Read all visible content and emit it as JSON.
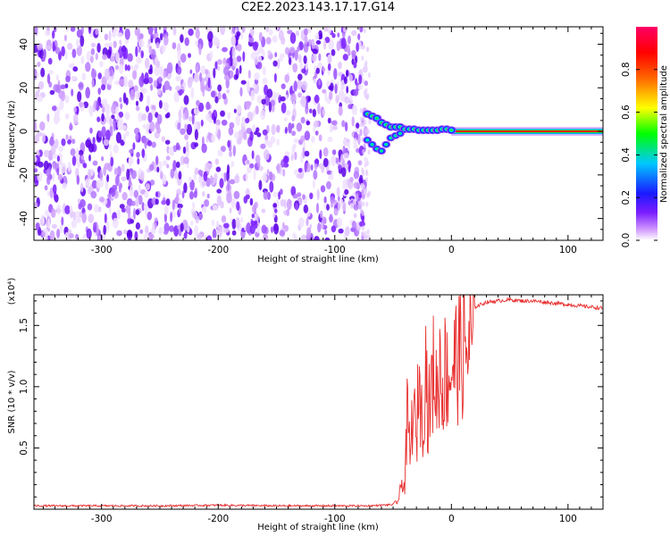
{
  "title": "C2E2.2023.143.17.17.G14",
  "chart_data": [
    {
      "type": "heatmap",
      "title": "C2E2.2023.143.17.17.G14",
      "xlabel": "Height of straight line (km)",
      "ylabel": "Frequency (Hz)",
      "xlim": [
        -358,
        130
      ],
      "ylim": [
        -50,
        48
      ],
      "x_ticks": [
        -300,
        -200,
        -100,
        0,
        100
      ],
      "y_ticks": [
        -40,
        -20,
        0,
        20,
        40
      ],
      "grid": false,
      "noise_region_x": [
        -358,
        -73
      ],
      "signal_trace": [
        {
          "x": -72,
          "y": 8
        },
        {
          "x": -68,
          "y": 7
        },
        {
          "x": -64,
          "y": 6
        },
        {
          "x": -60,
          "y": 4
        },
        {
          "x": -56,
          "y": 3
        },
        {
          "x": -52,
          "y": 2
        },
        {
          "x": -48,
          "y": 2
        },
        {
          "x": -44,
          "y": 2
        },
        {
          "x": -40,
          "y": 1
        },
        {
          "x": -36,
          "y": 1
        },
        {
          "x": -32,
          "y": 1
        },
        {
          "x": -28,
          "y": 0.5
        },
        {
          "x": -24,
          "y": 0.5
        },
        {
          "x": -20,
          "y": 0.5
        },
        {
          "x": -16,
          "y": 0.5
        },
        {
          "x": -12,
          "y": 0.5
        },
        {
          "x": -8,
          "y": 1
        },
        {
          "x": -4,
          "y": 1
        },
        {
          "x": 0,
          "y": 0.5
        },
        {
          "x": 130,
          "y": 0
        }
      ],
      "lower_branch": [
        {
          "x": -72,
          "y": -4
        },
        {
          "x": -68,
          "y": -6
        },
        {
          "x": -64,
          "y": -8
        },
        {
          "x": -60,
          "y": -9
        },
        {
          "x": -56,
          "y": -6
        },
        {
          "x": -52,
          "y": -3
        },
        {
          "x": -48,
          "y": -2
        },
        {
          "x": -44,
          "y": -1
        }
      ],
      "colorbar": {
        "label": "Normalized spectral amplitude",
        "range": [
          0,
          1
        ],
        "ticks": [
          "0.0",
          "0.2",
          "0.4",
          "0.6",
          "0.8"
        ],
        "tick_values": [
          0,
          0.2,
          0.4,
          0.6,
          0.8
        ],
        "colors": [
          "#ffffff",
          "#d29bff",
          "#7a1dff",
          "#1a1aff",
          "#00c8ff",
          "#00ff00",
          "#ffff00",
          "#ff6600",
          "#ff0000",
          "#ff0066"
        ]
      }
    },
    {
      "type": "line",
      "xlabel": "Height of straight line (km)",
      "ylabel": "SNR (10 * v/v)",
      "y_multiplier": "(x10⁴)",
      "xlim": [
        -358,
        130
      ],
      "ylim": [
        0,
        1.75
      ],
      "x_ticks": [
        -300,
        -200,
        -100,
        0,
        100
      ],
      "y_ticks": [
        0.5,
        1.0,
        1.5
      ],
      "color": "#e83030",
      "grid": false,
      "series": [
        {
          "x": [
            -358,
            -300,
            -250,
            -200,
            -150,
            -100,
            -70,
            -50,
            -45,
            -42,
            -40,
            -38,
            -35,
            -33,
            -30,
            -28,
            -25,
            -22,
            -20,
            -18,
            -15,
            -12,
            -10,
            -8,
            -5,
            -3,
            0,
            5,
            10,
            15,
            20,
            25,
            30,
            40,
            50,
            60,
            70,
            80,
            90,
            100,
            110,
            120,
            130
          ],
          "y": [
            0.02,
            0.02,
            0.02,
            0.025,
            0.02,
            0.02,
            0.02,
            0.03,
            0.1,
            0.3,
            0.2,
            0.9,
            0.5,
            1.1,
            0.6,
            1.4,
            0.8,
            1.5,
            0.9,
            1.1,
            1.4,
            1.1,
            1.5,
            1.2,
            1.4,
            1.3,
            1.4,
            1.5,
            1.55,
            1.6,
            1.65,
            1.67,
            1.69,
            1.7,
            1.71,
            1.7,
            1.7,
            1.69,
            1.68,
            1.67,
            1.66,
            1.65,
            1.64
          ]
        }
      ]
    }
  ]
}
